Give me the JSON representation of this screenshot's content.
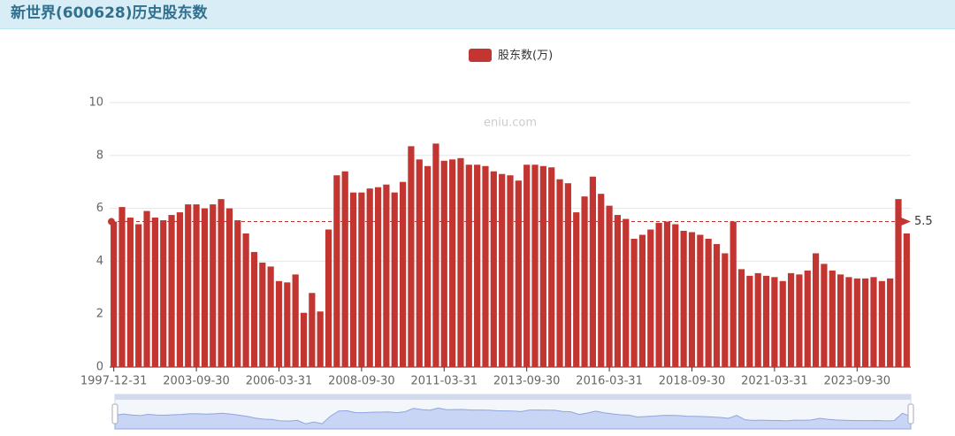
{
  "header": {
    "title": "新世界(600628)历史股东数"
  },
  "chart_data": {
    "type": "bar",
    "legend": "股东数(万)",
    "watermark": "eniu.com",
    "color": "#c23531",
    "categories": [
      "1997-12-31",
      null,
      null,
      null,
      null,
      null,
      null,
      null,
      null,
      null,
      "2003-09-30",
      null,
      null,
      null,
      null,
      null,
      null,
      null,
      null,
      null,
      "2006-03-31",
      null,
      null,
      null,
      null,
      null,
      null,
      null,
      null,
      null,
      "2008-09-30",
      null,
      null,
      null,
      null,
      null,
      null,
      null,
      null,
      null,
      "2011-03-31",
      null,
      null,
      null,
      null,
      null,
      null,
      null,
      null,
      null,
      "2013-09-30",
      null,
      null,
      null,
      null,
      null,
      null,
      null,
      null,
      null,
      "2016-03-31",
      null,
      null,
      null,
      null,
      null,
      null,
      null,
      null,
      null,
      "2018-09-30",
      null,
      null,
      null,
      null,
      null,
      null,
      null,
      null,
      null,
      "2021-03-31",
      null,
      null,
      null,
      null,
      null,
      null,
      null,
      null,
      null,
      "2023-09-30",
      null,
      null,
      null,
      null,
      null,
      null
    ],
    "values": [
      5.5,
      6.05,
      5.65,
      5.4,
      5.9,
      5.65,
      5.55,
      5.75,
      5.85,
      6.15,
      6.15,
      6.0,
      6.15,
      6.35,
      6.0,
      5.55,
      5.05,
      4.35,
      3.95,
      3.8,
      3.25,
      3.2,
      3.5,
      2.05,
      2.8,
      2.1,
      5.2,
      7.25,
      7.4,
      6.6,
      6.6,
      6.75,
      6.8,
      6.9,
      6.6,
      7.0,
      8.35,
      7.85,
      7.6,
      8.45,
      7.8,
      7.85,
      7.9,
      7.65,
      7.65,
      7.6,
      7.4,
      7.3,
      7.25,
      7.05,
      7.65,
      7.65,
      7.6,
      7.55,
      7.1,
      6.95,
      5.85,
      6.45,
      7.2,
      6.55,
      6.1,
      5.75,
      5.6,
      4.85,
      5.0,
      5.2,
      5.45,
      5.5,
      5.4,
      5.15,
      5.1,
      5.0,
      4.85,
      4.65,
      4.3,
      5.5,
      3.7,
      3.45,
      3.55,
      3.45,
      3.4,
      3.25,
      3.55,
      3.5,
      3.65,
      4.3,
      3.9,
      3.65,
      3.5,
      3.4,
      3.35,
      3.35,
      3.4,
      3.25,
      3.35,
      6.35,
      5.05
    ],
    "ylim": [
      0,
      10
    ],
    "yticks": [
      0,
      2,
      4,
      6,
      8,
      10
    ],
    "grid": true,
    "mark_line": 5.5
  }
}
